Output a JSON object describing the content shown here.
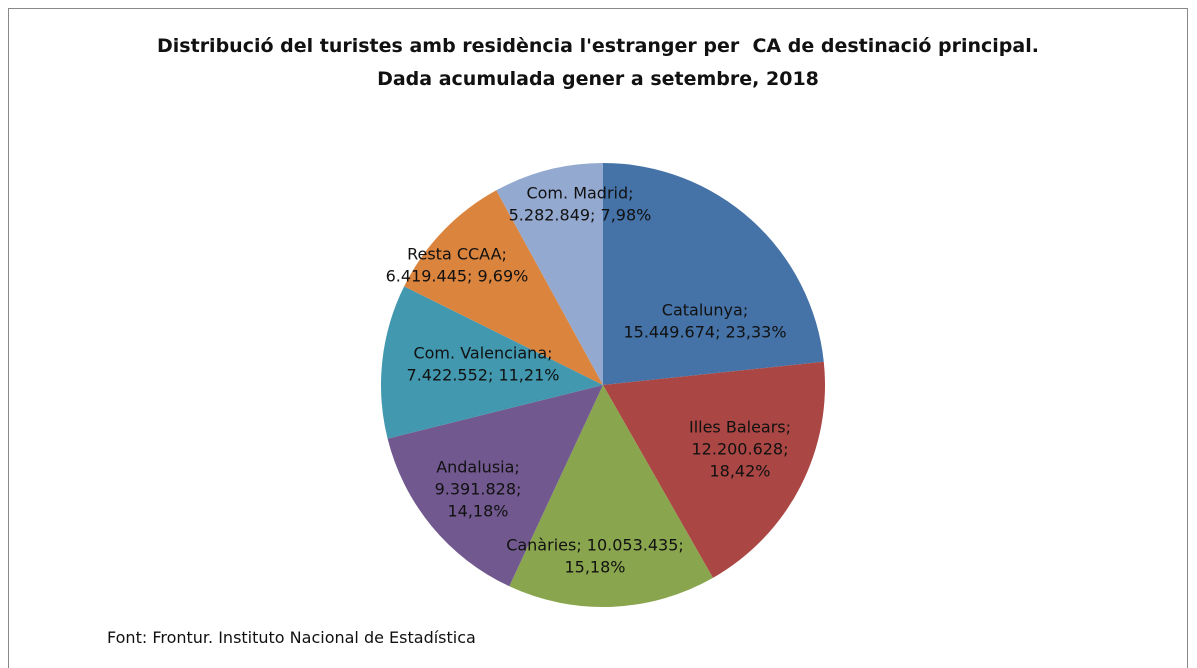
{
  "chart_data": {
    "type": "pie",
    "title": "Distribució del turistes amb residència l'estranger per  CA de destinació principal. Dada acumulada gener a setembre, 2018",
    "values": [
      15449674,
      12200628,
      10053435,
      9391828,
      7422552,
      6419445,
      5282849
    ],
    "value_labels": [
      [
        "Catalunya;",
        "15.449.674; 23,33%"
      ],
      [
        "Illes Balears;",
        "12.200.628;",
        "18,42%"
      ],
      [
        "Canàries; 10.053.435;",
        "15,18%"
      ],
      [
        "Andalusia;",
        "9.391.828;",
        "14,18%"
      ],
      [
        "Com. Valenciana;",
        "7.422.552; 11,21%"
      ],
      [
        "Resta CCAA;",
        "6.419.445; 9,69%"
      ],
      [
        "Com. Madrid;",
        "5.282.849; 7,98%"
      ]
    ],
    "colors": [
      "#4572a7",
      "#aa4643",
      "#89a54e",
      "#71588f",
      "#4198af",
      "#db843d",
      "#93a9cf"
    ],
    "source": "Font: Frontur. Instituto Nacional de Estadística"
  }
}
